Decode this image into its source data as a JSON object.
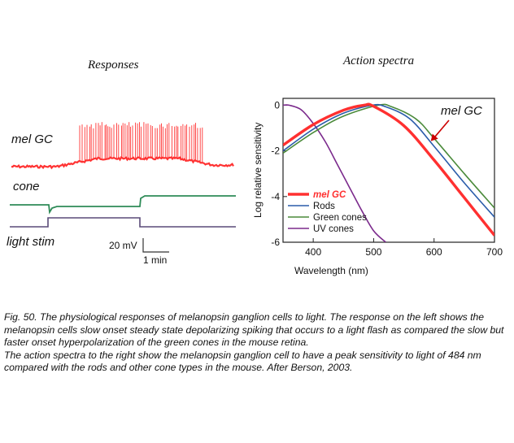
{
  "responses": {
    "title": "Responses",
    "labels": {
      "mel_gc": "mel GC",
      "cone": "cone",
      "light_stim": "light stim"
    },
    "scale_bar": {
      "voltage": "20 mV",
      "time": "1 min"
    },
    "colors": {
      "mel_gc": "#ff3333",
      "cone": "#2e8b57",
      "stim": "#5a4a78"
    }
  },
  "chart_data": {
    "type": "line",
    "title": "Action spectra",
    "xlabel": "Wavelength (nm)",
    "ylabel": "Log relative sensitivity",
    "xlim": [
      350,
      700
    ],
    "ylim": [
      -6,
      0.3
    ],
    "xticks": [
      400,
      500,
      600,
      700
    ],
    "yticks": [
      0,
      -2,
      -4,
      -6
    ],
    "legend_position": "bottom-left",
    "annotation": {
      "text": "mel GC",
      "x": 600,
      "y": -1.5
    },
    "series": [
      {
        "name": "mel GC",
        "color": "#ff3030",
        "x": [
          350,
          400,
          450,
          484,
          500,
          550,
          600,
          650,
          700
        ],
        "y": [
          -1.75,
          -0.85,
          -0.22,
          0,
          -0.05,
          -0.9,
          -2.4,
          -4.05,
          -5.7
        ]
      },
      {
        "name": "Rods",
        "color": "#2a5caa",
        "x": [
          350,
          400,
          450,
          498,
          520,
          560,
          600,
          650,
          700
        ],
        "y": [
          -2.0,
          -1.05,
          -0.35,
          0,
          -0.07,
          -0.6,
          -1.8,
          -3.4,
          -4.9
        ]
      },
      {
        "name": "Green cones",
        "color": "#4a8a3a",
        "x": [
          350,
          400,
          450,
          508,
          530,
          570,
          600,
          650,
          700
        ],
        "y": [
          -2.1,
          -1.2,
          -0.48,
          0,
          -0.07,
          -0.6,
          -1.45,
          -3.0,
          -4.5
        ]
      },
      {
        "name": "UV cones",
        "color": "#7b2a8c",
        "x": [
          350,
          360,
          380,
          400,
          420,
          440,
          460,
          480,
          500,
          520
        ],
        "y": [
          0,
          0,
          -0.2,
          -0.8,
          -1.6,
          -2.6,
          -3.6,
          -4.6,
          -5.5,
          -6.0
        ]
      }
    ]
  },
  "caption": {
    "line1": "Fig. 50. The physiological responses of melanopsin ganglion cells to light. The response on the left shows the melanopsin cells slow onset steady state depolarizing spiking that occurs to a light flash as compared the slow but faster onset hyperpolarization of the green cones in the mouse retina.",
    "line2": "The action spectra to the right show the melanopsin ganglion cell to have a peak sensitivity to light of 484 nm compared with the rods and other cone types in the mouse. After Berson, 2003."
  }
}
